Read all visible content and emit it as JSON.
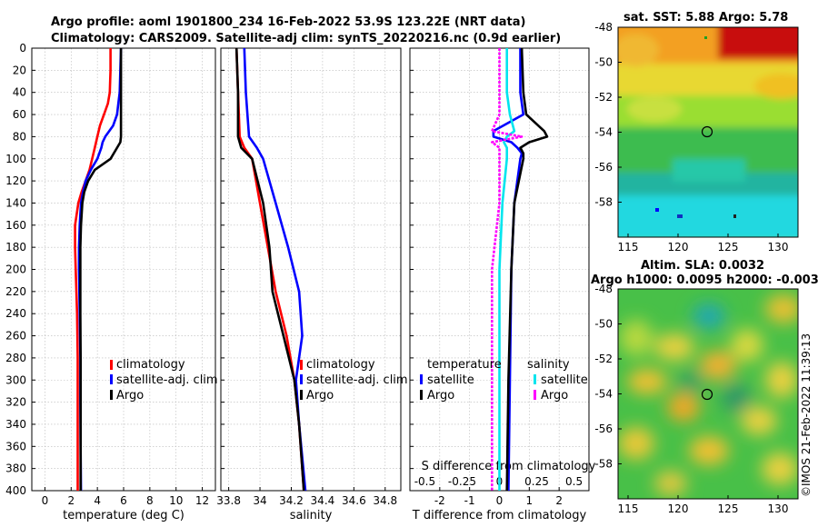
{
  "title": {
    "line1": "Argo profile: aoml 1901800_234 16-Feb-2022 53.9S 123.22E (NRT data)",
    "line2": "Climatology: CARS2009. Satellite-adj clim: synTS_20220216.nc (0.9d earlier)"
  },
  "depth_ticks": [
    "0",
    "20",
    "40",
    "60",
    "80",
    "100",
    "120",
    "140",
    "160",
    "180",
    "200",
    "220",
    "240",
    "260",
    "280",
    "300",
    "320",
    "340",
    "360",
    "380",
    "400"
  ],
  "colors": {
    "climatology": "#ff0000",
    "satellite": "#0000ff",
    "argo": "#000000",
    "sat_salinity": "#00e5ee",
    "argo_salinity": "#ff00ff"
  },
  "chart_data": [
    {
      "id": "temperature",
      "type": "line",
      "xlabel": "temperature (deg C)",
      "xlim": [
        -1,
        13
      ],
      "ylim": [
        0,
        400
      ],
      "y_inverted": true,
      "xticks": [
        "0",
        "2",
        "4",
        "6",
        "8",
        "10",
        "12"
      ],
      "legend": [
        "climatology",
        "satellite-adj. clim",
        "Argo"
      ],
      "depth": [
        0,
        20,
        40,
        50,
        60,
        70,
        80,
        85,
        90,
        100,
        110,
        120,
        130,
        140,
        160,
        180,
        200,
        240,
        280,
        320,
        360,
        400
      ],
      "series": [
        {
          "name": "climatology",
          "values": [
            5.0,
            5.0,
            4.95,
            4.8,
            4.5,
            4.2,
            4.0,
            3.9,
            3.8,
            3.6,
            3.4,
            3.1,
            2.8,
            2.55,
            2.3,
            2.3,
            2.35,
            2.45,
            2.5,
            2.5,
            2.5,
            2.5
          ]
        },
        {
          "name": "satellite-adj. clim",
          "values": [
            5.8,
            5.75,
            5.7,
            5.6,
            5.5,
            5.2,
            4.6,
            4.4,
            4.3,
            4.0,
            3.5,
            3.1,
            2.9,
            2.75,
            2.65,
            2.6,
            2.6,
            2.65,
            2.7,
            2.7,
            2.72,
            2.75
          ]
        },
        {
          "name": "Argo",
          "values": [
            5.8,
            5.8,
            5.8,
            5.8,
            5.8,
            5.8,
            5.8,
            5.75,
            5.5,
            5.0,
            3.8,
            3.3,
            3.0,
            2.85,
            2.75,
            2.7,
            2.7,
            2.7,
            2.72,
            2.72,
            2.72,
            2.72
          ]
        }
      ]
    },
    {
      "id": "salinity",
      "type": "line",
      "xlabel": "salinity",
      "xlim": [
        33.75,
        34.9
      ],
      "ylim": [
        0,
        400
      ],
      "y_inverted": true,
      "xticks": [
        "33.8",
        "34",
        "34.2",
        "34.4",
        "34.6",
        "34.8"
      ],
      "legend": [
        "climatology",
        "satellite-adj. clim",
        "Argo"
      ],
      "depth": [
        0,
        40,
        80,
        90,
        100,
        140,
        180,
        220,
        260,
        300,
        340,
        400
      ],
      "series": [
        {
          "name": "climatology",
          "values": [
            33.85,
            33.86,
            33.87,
            33.9,
            33.95,
            34.0,
            34.05,
            34.1,
            34.17,
            34.22,
            34.25,
            34.28
          ]
        },
        {
          "name": "satellite-adj. clim",
          "values": [
            33.9,
            33.91,
            33.93,
            33.98,
            34.02,
            34.1,
            34.18,
            34.25,
            34.27,
            34.23,
            34.25,
            34.29
          ]
        },
        {
          "name": "Argo",
          "values": [
            33.85,
            33.86,
            33.86,
            33.88,
            33.95,
            34.02,
            34.06,
            34.08,
            34.15,
            34.22,
            34.25,
            34.28
          ]
        }
      ]
    },
    {
      "id": "difference",
      "type": "line",
      "xlabel": "T difference from climatology",
      "xlabel_top": "S difference from climatology",
      "xlim": [
        -3,
        3
      ],
      "ylim": [
        0,
        400
      ],
      "y_inverted": true,
      "xticks": [
        "-2",
        "-1",
        "0",
        "1",
        "2"
      ],
      "xticks_top": [
        "-0.5",
        "-0.25",
        "0",
        "0.25",
        "0.5"
      ],
      "legend_temperature_title": "temperature",
      "legend_salinity_title": "salinity",
      "legend": [
        "satellite",
        "Argo",
        "satellite",
        "Argo"
      ],
      "depth": [
        0,
        40,
        60,
        75,
        80,
        85,
        90,
        95,
        100,
        140,
        200,
        300,
        400
      ],
      "series": [
        {
          "name": "satellite",
          "values": [
            0.7,
            0.7,
            0.8,
            -0.2,
            -0.2,
            0.4,
            0.6,
            0.75,
            0.7,
            0.5,
            0.4,
            0.35,
            0.3
          ]
        },
        {
          "name": "Argo",
          "values": [
            0.75,
            0.8,
            0.9,
            1.5,
            1.6,
            1.0,
            0.7,
            0.8,
            0.8,
            0.5,
            0.4,
            0.3,
            0.25
          ]
        },
        {
          "name": "satellite salinity",
          "values": [
            0.05,
            0.05,
            0.07,
            0.1,
            0.05,
            0.03,
            0.05,
            0.05,
            0.05,
            0.02,
            0.0,
            0.0,
            0.0
          ]
        },
        {
          "name": "Argo salinity",
          "values": [
            0.0,
            0.0,
            0.0,
            -0.05,
            0.15,
            -0.05,
            0.0,
            0.0,
            0.0,
            0.0,
            -0.05,
            -0.05,
            -0.05
          ]
        }
      ]
    }
  ],
  "sst_map": {
    "title": "sat. SST: 5.88 Argo: 5.78",
    "lon_ticks": [
      "115",
      "120",
      "125",
      "130"
    ],
    "lat_ticks": [
      "-48",
      "-50",
      "-52",
      "-54",
      "-56",
      "-58"
    ]
  },
  "sla_map": {
    "title1": "Altim. SLA: 0.0032",
    "title2": "Argo h1000: 0.0095 h2000: -0.003",
    "lon_ticks": [
      "115",
      "120",
      "125",
      "130"
    ],
    "lat_ticks": [
      "-48",
      "-50",
      "-52",
      "-54",
      "-56",
      "-58"
    ]
  },
  "watermark": "©IMOS 21-Feb-2022 11:39:13"
}
